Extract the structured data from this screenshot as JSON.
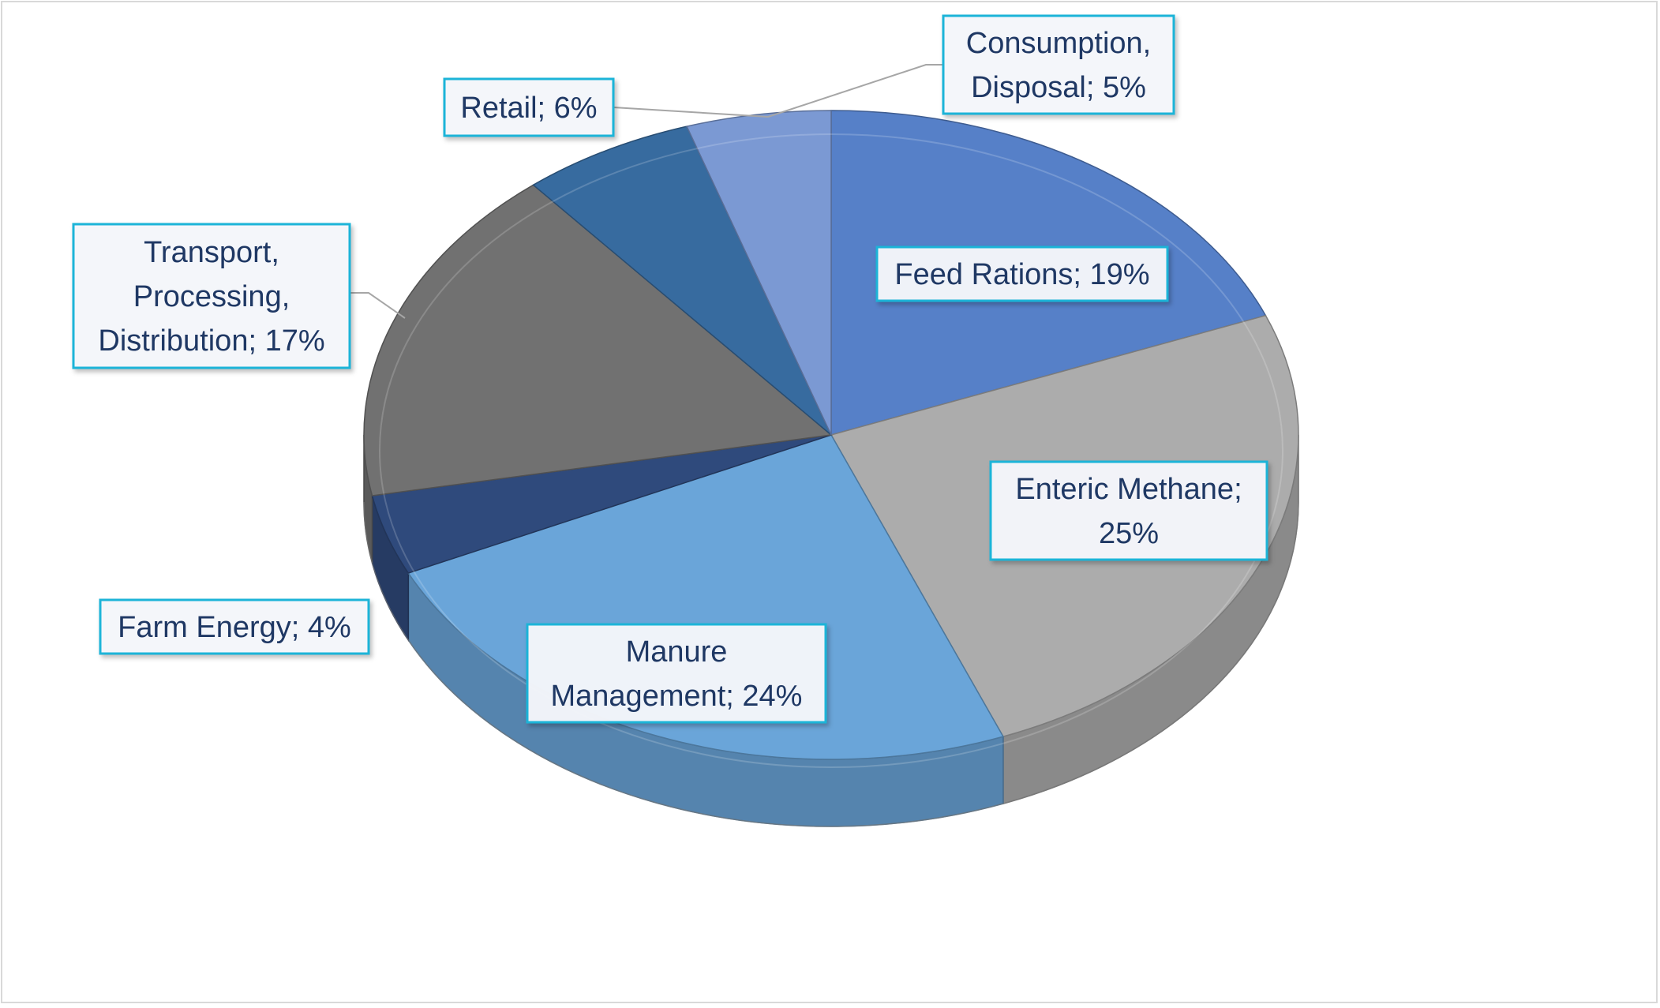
{
  "chart_data": {
    "type": "pie",
    "style": "3d-perspective",
    "title": "",
    "slices": [
      {
        "name": "Feed Rations",
        "value": 19,
        "color": "#5680c8",
        "label_lines": [
          "Feed Rations; 19%"
        ]
      },
      {
        "name": "Enteric Methane",
        "value": 25,
        "color": "#acacac",
        "label_lines": [
          "Enteric Methane;",
          "25%"
        ]
      },
      {
        "name": "Manure Management",
        "value": 24,
        "color": "#6aa5d9",
        "label_lines": [
          "Manure",
          "Management; 24%"
        ]
      },
      {
        "name": "Farm Energy",
        "value": 4,
        "color": "#2f4a7c",
        "label_lines": [
          "Farm Energy; 4%"
        ]
      },
      {
        "name": "Transport, Processing, Distribution",
        "value": 17,
        "color": "#717171",
        "label_lines": [
          "Transport,",
          "Processing,",
          "Distribution; 17%"
        ]
      },
      {
        "name": "Retail",
        "value": 6,
        "color": "#376b9f",
        "label_lines": [
          "Retail; 6%"
        ]
      },
      {
        "name": "Consumption, Disposal",
        "value": 5,
        "color": "#7b99d3",
        "label_lines": [
          "Consumption,",
          "Disposal; 5%"
        ]
      }
    ],
    "legend": "none",
    "data_label_border_color": "#1fb4d8",
    "data_label_text_color": "#1f3864",
    "leader_line_color": "#a6a6a6"
  }
}
